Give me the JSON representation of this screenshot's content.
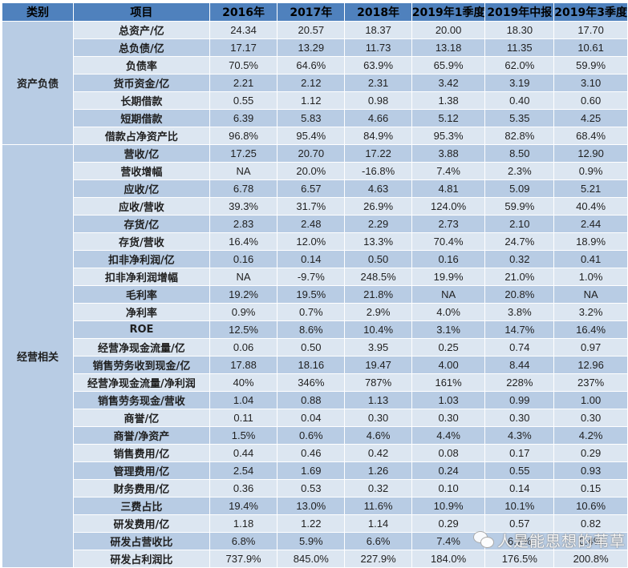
{
  "header": {
    "category": "类别",
    "item": "项目",
    "periods": [
      "2016年",
      "2017年",
      "2018年",
      "2019年1季度",
      "2019年中报",
      "2019年3季度"
    ]
  },
  "categories": [
    {
      "label": "资产负债",
      "rows": 7
    },
    {
      "label": "经营相关",
      "rows": 24
    }
  ],
  "rows": [
    {
      "item": "总资产/亿",
      "values": [
        "24.34",
        "20.57",
        "18.37",
        "20.00",
        "18.30",
        "17.70"
      ]
    },
    {
      "item": "总负债/亿",
      "values": [
        "17.17",
        "13.29",
        "11.73",
        "13.18",
        "11.35",
        "10.61"
      ]
    },
    {
      "item": "负债率",
      "values": [
        "70.5%",
        "64.6%",
        "63.9%",
        "65.9%",
        "62.0%",
        "59.9%"
      ]
    },
    {
      "item": "货币资金/亿",
      "values": [
        "2.21",
        "2.12",
        "2.31",
        "3.42",
        "3.19",
        "3.10"
      ]
    },
    {
      "item": "长期借款",
      "values": [
        "0.55",
        "1.12",
        "0.98",
        "1.38",
        "0.40",
        "0.60"
      ]
    },
    {
      "item": "短期借款",
      "values": [
        "6.39",
        "5.83",
        "4.66",
        "5.12",
        "5.35",
        "4.25"
      ]
    },
    {
      "item": "借款占净资产比",
      "values": [
        "96.8%",
        "95.4%",
        "84.9%",
        "95.3%",
        "82.8%",
        "68.4%"
      ]
    },
    {
      "item": "营收/亿",
      "values": [
        "17.25",
        "20.70",
        "17.22",
        "3.88",
        "8.50",
        "12.90"
      ]
    },
    {
      "item": "营收增幅",
      "values": [
        "NA",
        "20.0%",
        "-16.8%",
        "7.4%",
        "2.3%",
        "0.9%"
      ]
    },
    {
      "item": "应收/亿",
      "values": [
        "6.78",
        "6.57",
        "4.63",
        "4.81",
        "5.09",
        "5.21"
      ]
    },
    {
      "item": "应收/营收",
      "values": [
        "39.3%",
        "31.7%",
        "26.9%",
        "124.0%",
        "59.9%",
        "40.4%"
      ]
    },
    {
      "item": "存货/亿",
      "values": [
        "2.83",
        "2.48",
        "2.29",
        "2.73",
        "2.10",
        "2.44"
      ]
    },
    {
      "item": "存货/营收",
      "values": [
        "16.4%",
        "12.0%",
        "13.3%",
        "70.4%",
        "24.7%",
        "18.9%"
      ]
    },
    {
      "item": "扣非净利润/亿",
      "values": [
        "0.16",
        "0.14",
        "0.50",
        "0.16",
        "0.32",
        "0.41"
      ]
    },
    {
      "item": "扣非净利润增幅",
      "values": [
        "NA",
        "-9.7%",
        "248.5%",
        "19.9%",
        "21.0%",
        "1.0%"
      ]
    },
    {
      "item": "毛利率",
      "values": [
        "19.2%",
        "19.5%",
        "21.8%",
        "NA",
        "20.8%",
        "NA"
      ]
    },
    {
      "item": "净利率",
      "values": [
        "0.9%",
        "0.7%",
        "2.9%",
        "4.0%",
        "3.8%",
        "3.2%"
      ]
    },
    {
      "item": "ROE",
      "values": [
        "12.5%",
        "8.6%",
        "10.4%",
        "3.1%",
        "14.7%",
        "16.4%"
      ]
    },
    {
      "item": "经营净现金流量/亿",
      "values": [
        "0.06",
        "0.50",
        "3.95",
        "0.25",
        "0.74",
        "0.97"
      ]
    },
    {
      "item": "销售劳务收到现金/亿",
      "values": [
        "17.88",
        "18.16",
        "19.47",
        "4.00",
        "8.44",
        "12.96"
      ]
    },
    {
      "item": "经营净现金流量/净利润",
      "values": [
        "40%",
        "346%",
        "787%",
        "161%",
        "228%",
        "237%"
      ]
    },
    {
      "item": "销售劳务现金/营收",
      "values": [
        "1.04",
        "0.88",
        "1.13",
        "1.03",
        "0.99",
        "1.00"
      ]
    },
    {
      "item": "商誉/亿",
      "values": [
        "0.11",
        "0.04",
        "0.30",
        "0.30",
        "0.30",
        "0.30"
      ]
    },
    {
      "item": "商誉/净资产",
      "values": [
        "1.5%",
        "0.6%",
        "4.6%",
        "4.4%",
        "4.3%",
        "4.2%"
      ]
    },
    {
      "item": "销售费用/亿",
      "values": [
        "0.44",
        "0.46",
        "0.42",
        "0.08",
        "0.17",
        "0.29"
      ]
    },
    {
      "item": "管理费用/亿",
      "values": [
        "2.54",
        "1.69",
        "1.26",
        "0.24",
        "0.55",
        "0.93"
      ]
    },
    {
      "item": "财务费用/亿",
      "values": [
        "0.36",
        "0.53",
        "0.32",
        "0.10",
        "0.14",
        "0.15"
      ]
    },
    {
      "item": "三费占比",
      "values": [
        "19.4%",
        "13.0%",
        "11.6%",
        "10.9%",
        "10.1%",
        "10.6%"
      ]
    },
    {
      "item": "研发费用/亿",
      "values": [
        "1.18",
        "1.22",
        "1.14",
        "0.29",
        "0.57",
        "0.82"
      ]
    },
    {
      "item": "研发占营收比",
      "values": [
        "6.8%",
        "5.9%",
        "6.6%",
        "7.4%",
        "6.7%",
        "6.4%"
      ]
    },
    {
      "item": "研发占利润比",
      "values": [
        "737.9%",
        "845.0%",
        "227.9%",
        "184.0%",
        "176.5%",
        "200.8%"
      ]
    }
  ],
  "watermark": {
    "text": "人是能思想的苇草",
    "icon": "wechat-icon"
  }
}
